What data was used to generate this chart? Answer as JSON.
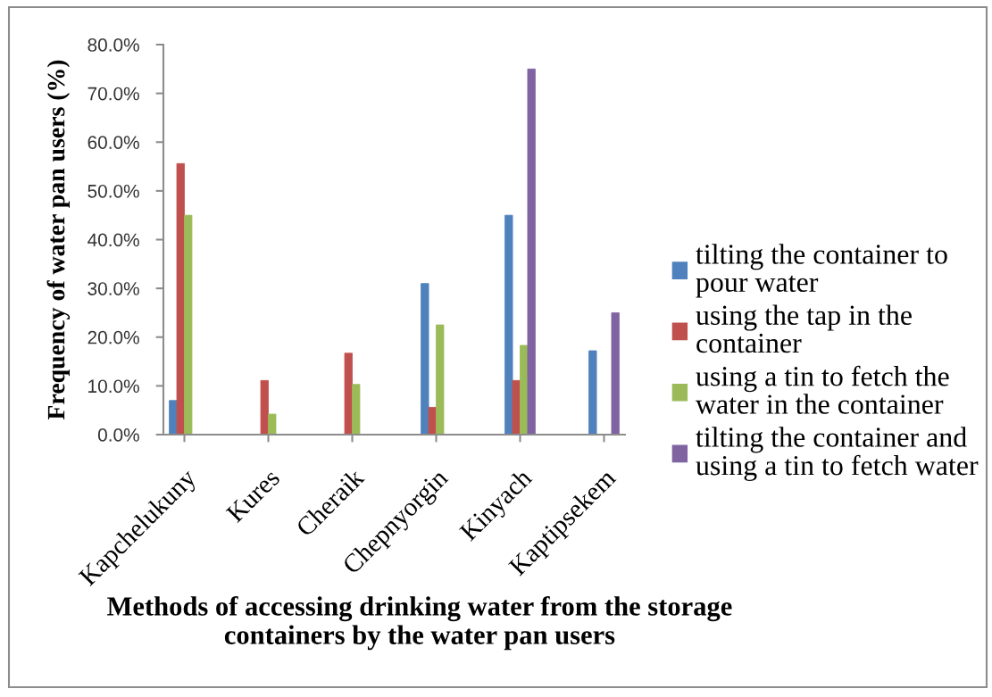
{
  "chart_data": {
    "type": "bar",
    "xlabel": "Methods of accessing drinking water from the storage\ncontainers by the water pan users",
    "ylabel": "Frequency of water pan users (%)",
    "categories": [
      "Kapchelukuny",
      "Kures",
      "Cheraik",
      "Chepnyorgin",
      "Kinyach",
      "Kaptipsekem"
    ],
    "series": [
      {
        "name": "tilting the container to\npour water",
        "color": "#4f81bd",
        "values": [
          7.0,
          0,
          0,
          31.0,
          45.0,
          17.2
        ]
      },
      {
        "name": "using the tap in the\ncontainer",
        "color": "#c0504d",
        "values": [
          55.6,
          11.1,
          16.7,
          5.6,
          11.1,
          0
        ]
      },
      {
        "name": "using a tin to fetch the\nwater in the container",
        "color": "#9bbb59",
        "values": [
          45.0,
          4.2,
          10.3,
          22.5,
          18.3,
          0
        ]
      },
      {
        "name": "tilting the container and\nusing a tin to fetch water",
        "color": "#8064a2",
        "values": [
          0,
          0,
          0,
          0,
          75.0,
          25.0
        ]
      }
    ],
    "ylim": [
      0,
      80
    ],
    "yticks": [
      {
        "value": 0,
        "label": "0.0%"
      },
      {
        "value": 10,
        "label": "10.0%"
      },
      {
        "value": 20,
        "label": "20.0%"
      },
      {
        "value": 30,
        "label": "30.0%"
      },
      {
        "value": 40,
        "label": "40.0%"
      },
      {
        "value": 50,
        "label": "50.0%"
      },
      {
        "value": 60,
        "label": "60.0%"
      },
      {
        "value": 70,
        "label": "70.0%"
      },
      {
        "value": 80,
        "label": "80.0%"
      }
    ],
    "grid": false,
    "legend": "right"
  }
}
